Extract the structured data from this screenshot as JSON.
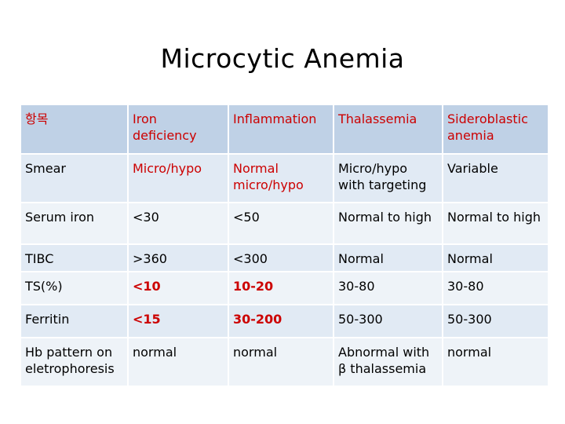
{
  "slide": {
    "title": "Microcytic Anemia",
    "colors": {
      "header_bg": "#bfd1e6",
      "row_dark": "#e1eaf4",
      "row_light": "#eef3f8",
      "highlight_text": "#cc0000"
    }
  },
  "table": {
    "headers": [
      "항목",
      "Iron deficiency",
      "Inflammation",
      "Thalassemia",
      "Sideroblastic anemia"
    ],
    "rows": [
      [
        "Smear",
        "Micro/hypo",
        "Normal micro/hypo",
        "Micro/hypo with targeting",
        "Variable"
      ],
      [
        "Serum iron",
        "<30",
        "<50",
        "Normal to high",
        "Normal to high"
      ],
      [
        "TIBC",
        ">360",
        "<300",
        "Normal",
        "Normal"
      ],
      [
        "TS(%)",
        "<10",
        "10-20",
        "30-80",
        "30-80"
      ],
      [
        "Ferritin",
        "<15",
        "30-200",
        "50-300",
        "50-300"
      ],
      [
        "Hb pattern on eletrophoresis",
        "normal",
        "normal",
        "Abnormal with β thalassemia",
        "normal"
      ]
    ]
  }
}
